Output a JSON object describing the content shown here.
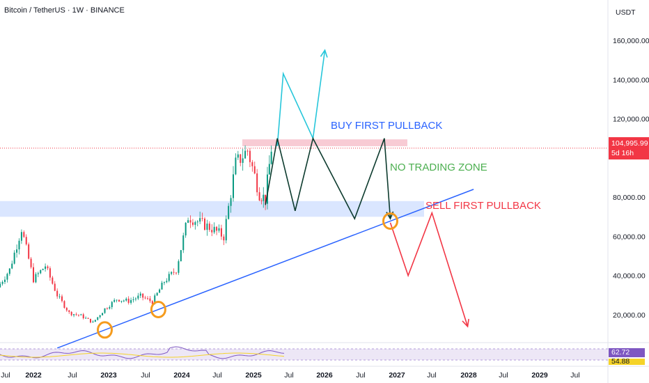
{
  "header": {
    "symbol_line": "Bitcoin / TetherUS · 1W · BINANCE"
  },
  "price_axis": {
    "unit": "USDT",
    "ticks": [
      "160,000.00",
      "140,000.00",
      "120,000.00",
      "104,995.99",
      "80,000.00",
      "60,000.00",
      "40,000.00",
      "20,000.00"
    ]
  },
  "last_price": {
    "value": "104,995.99",
    "countdown": "5d 16h",
    "color": "#f23645"
  },
  "rsi": {
    "value1": "62.72",
    "value2": "54.88",
    "color1": "#7e57c2",
    "color2": "#f5d328"
  },
  "chart_data": {
    "type": "line",
    "title": "Bitcoin / TetherUS · 1W · BINANCE",
    "time_axis": [
      "Jul",
      "2022",
      "Jul",
      "2023",
      "Jul",
      "2024",
      "Jul",
      "2025",
      "Jul",
      "2026",
      "Jul",
      "2027",
      "Jul",
      "2028",
      "Jul",
      "2029",
      "Jul"
    ],
    "y_range": [
      0,
      170000
    ],
    "series": [
      {
        "values": [
          [
            "2021-07",
            34000
          ],
          [
            "2021-09",
            43000
          ],
          [
            "2021-11",
            64000
          ],
          [
            "2022-01",
            38000
          ],
          [
            "2022-03",
            45000
          ],
          [
            "2022-05",
            30000
          ],
          [
            "2022-07",
            21000
          ],
          [
            "2022-09",
            19500
          ],
          [
            "2022-11",
            16000
          ],
          [
            "2023-01",
            23000
          ],
          [
            "2023-03",
            28000
          ],
          [
            "2023-05",
            27000
          ],
          [
            "2023-07",
            29500
          ],
          [
            "2023-09",
            26500
          ],
          [
            "2023-11",
            37000
          ],
          [
            "2024-01",
            43000
          ],
          [
            "2024-03",
            70000
          ],
          [
            "2024-05",
            67000
          ],
          [
            "2024-07",
            64000
          ],
          [
            "2024-09",
            60000
          ],
          [
            "2024-11",
            97000
          ],
          [
            "2025-01",
            104000
          ],
          [
            "2025-03",
            82000
          ],
          [
            "2025-04",
            79000
          ],
          [
            "2025-05",
            104995.99
          ]
        ]
      }
    ],
    "annotations": [
      {
        "text": "BUY FIRST PULLBACK",
        "color": "#2962ff"
      },
      {
        "text": "NO TRADING ZONE",
        "color": "#4caf50"
      },
      {
        "text": "SELL FIRST PULLBACK",
        "color": "#f23645"
      }
    ],
    "zones": [
      {
        "label": "resistance",
        "y_from": 106000,
        "y_to": 109500,
        "color": "#f7c5cf"
      },
      {
        "label": "support",
        "y_from": 70000,
        "y_to": 78000,
        "color": "#d6e3ff"
      }
    ],
    "trendline": {
      "from": [
        "2022-05",
        3000
      ],
      "to": [
        "2028-03",
        84000
      ],
      "color": "#2962ff"
    },
    "projections": {
      "bull": [
        [
          "2025-06",
          106000
        ],
        [
          "2025-07",
          143000
        ],
        [
          "2025-12",
          110000
        ],
        [
          "2026-02",
          155000
        ]
      ],
      "range": [
        [
          "2025-04",
          76000
        ],
        [
          "2025-06",
          110000
        ],
        [
          "2025-09",
          73000
        ],
        [
          "2025-12",
          110000
        ],
        [
          "2026-07",
          69000
        ],
        [
          "2026-12",
          110000
        ],
        [
          "2027-01",
          69000
        ]
      ],
      "bear": [
        [
          "2027-01",
          67000
        ],
        [
          "2027-04",
          40000
        ],
        [
          "2027-08",
          72000
        ],
        [
          "2028-02",
          14000
        ]
      ]
    },
    "markers": [
      "2023-01",
      "2023-10",
      "2027-01"
    ]
  }
}
